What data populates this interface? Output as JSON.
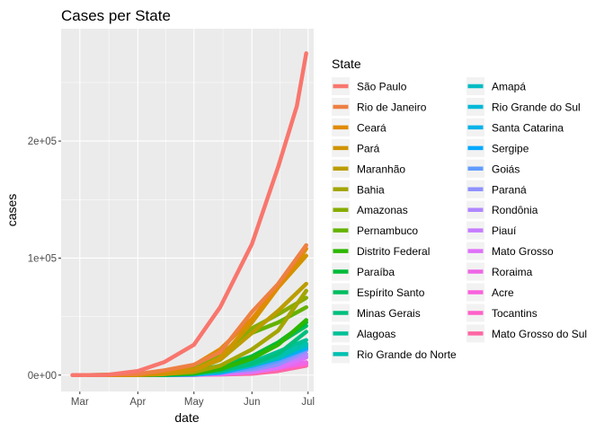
{
  "chart_data": {
    "type": "line",
    "title": "Cases per State",
    "xlabel": "date",
    "ylabel": "cases",
    "x_ticks": [
      "Mar",
      "Apr",
      "May",
      "Jun",
      "Jul"
    ],
    "x_tick_dates": [
      "2020-03-01",
      "2020-04-01",
      "2020-05-01",
      "2020-06-01",
      "2020-07-01"
    ],
    "xlim": [
      "2020-02-20",
      "2020-07-04"
    ],
    "y_ticks": [
      0,
      100000,
      200000
    ],
    "y_tick_labels": [
      "0e+00",
      "1e+05",
      "2e+05"
    ],
    "ylim": [
      -14000,
      296000
    ],
    "grid": true,
    "legend_title": "State",
    "legend_position": "right",
    "series": [
      {
        "name": "São Paulo",
        "color": "#F8766D",
        "points": [
          [
            "2020-02-26",
            1
          ],
          [
            "2020-03-15",
            150
          ],
          [
            "2020-04-01",
            3500
          ],
          [
            "2020-04-15",
            11000
          ],
          [
            "2020-05-01",
            26000
          ],
          [
            "2020-05-15",
            58000
          ],
          [
            "2020-06-01",
            112000
          ],
          [
            "2020-06-15",
            178000
          ],
          [
            "2020-06-25",
            230000
          ],
          [
            "2020-06-30",
            275000
          ]
        ]
      },
      {
        "name": "Rio de Janeiro",
        "color": "#EE8043",
        "points": [
          [
            "2020-03-05",
            1
          ],
          [
            "2020-04-01",
            1000
          ],
          [
            "2020-04-15",
            4000
          ],
          [
            "2020-05-01",
            8900
          ],
          [
            "2020-05-15",
            19500
          ],
          [
            "2020-06-01",
            54000
          ],
          [
            "2020-06-15",
            78000
          ],
          [
            "2020-06-30",
            111000
          ]
        ]
      },
      {
        "name": "Ceará",
        "color": "#E08B00",
        "points": [
          [
            "2020-03-15",
            1
          ],
          [
            "2020-04-01",
            700
          ],
          [
            "2020-04-15",
            3000
          ],
          [
            "2020-05-01",
            8500
          ],
          [
            "2020-05-15",
            22000
          ],
          [
            "2020-06-01",
            48000
          ],
          [
            "2020-06-15",
            75000
          ],
          [
            "2020-06-30",
            108000
          ]
        ]
      },
      {
        "name": "Pará",
        "color": "#CF9400",
        "points": [
          [
            "2020-03-18",
            1
          ],
          [
            "2020-04-01",
            150
          ],
          [
            "2020-04-15",
            900
          ],
          [
            "2020-05-01",
            4000
          ],
          [
            "2020-05-15",
            14500
          ],
          [
            "2020-06-01",
            45000
          ],
          [
            "2020-06-15",
            75000
          ],
          [
            "2020-06-30",
            102000
          ]
        ]
      },
      {
        "name": "Maranhão",
        "color": "#BB9D00",
        "points": [
          [
            "2020-03-20",
            1
          ],
          [
            "2020-04-01",
            150
          ],
          [
            "2020-04-15",
            800
          ],
          [
            "2020-05-01",
            4500
          ],
          [
            "2020-05-15",
            13000
          ],
          [
            "2020-06-01",
            36000
          ],
          [
            "2020-06-15",
            55000
          ],
          [
            "2020-06-30",
            78000
          ]
        ]
      },
      {
        "name": "Bahia",
        "color": "#A3A500",
        "points": [
          [
            "2020-03-06",
            1
          ],
          [
            "2020-04-01",
            300
          ],
          [
            "2020-04-15",
            1000
          ],
          [
            "2020-05-01",
            2500
          ],
          [
            "2020-05-15",
            8000
          ],
          [
            "2020-06-01",
            22000
          ],
          [
            "2020-06-15",
            38000
          ],
          [
            "2020-06-30",
            72000
          ]
        ]
      },
      {
        "name": "Amazonas",
        "color": "#87AC00",
        "points": [
          [
            "2020-03-13",
            1
          ],
          [
            "2020-04-01",
            200
          ],
          [
            "2020-04-15",
            1500
          ],
          [
            "2020-05-01",
            6000
          ],
          [
            "2020-05-15",
            17000
          ],
          [
            "2020-06-01",
            40000
          ],
          [
            "2020-06-15",
            52000
          ],
          [
            "2020-06-30",
            66000
          ]
        ]
      },
      {
        "name": "Pernambuco",
        "color": "#64B200",
        "points": [
          [
            "2020-03-12",
            1
          ],
          [
            "2020-04-01",
            100
          ],
          [
            "2020-04-15",
            1400
          ],
          [
            "2020-05-01",
            7500
          ],
          [
            "2020-05-15",
            15000
          ],
          [
            "2020-06-01",
            36000
          ],
          [
            "2020-06-15",
            45000
          ],
          [
            "2020-06-30",
            58000
          ]
        ]
      },
      {
        "name": "Distrito Federal",
        "color": "#2CB600",
        "points": [
          [
            "2020-03-07",
            1
          ],
          [
            "2020-04-01",
            400
          ],
          [
            "2020-04-15",
            900
          ],
          [
            "2020-05-01",
            2000
          ],
          [
            "2020-05-15",
            5000
          ],
          [
            "2020-06-01",
            14000
          ],
          [
            "2020-06-15",
            26000
          ],
          [
            "2020-06-30",
            47000
          ]
        ]
      },
      {
        "name": "Paraíba",
        "color": "#00BA38",
        "points": [
          [
            "2020-03-18",
            1
          ],
          [
            "2020-04-01",
            30
          ],
          [
            "2020-04-15",
            200
          ],
          [
            "2020-05-01",
            1200
          ],
          [
            "2020-05-15",
            5000
          ],
          [
            "2020-06-01",
            16000
          ],
          [
            "2020-06-15",
            28000
          ],
          [
            "2020-06-30",
            45000
          ]
        ]
      },
      {
        "name": "Espírito Santo",
        "color": "#00BD5F",
        "points": [
          [
            "2020-03-06",
            1
          ],
          [
            "2020-04-01",
            150
          ],
          [
            "2020-04-15",
            800
          ],
          [
            "2020-05-01",
            3500
          ],
          [
            "2020-05-15",
            8000
          ],
          [
            "2020-06-01",
            16000
          ],
          [
            "2020-06-15",
            27000
          ],
          [
            "2020-06-30",
            42000
          ]
        ]
      },
      {
        "name": "Minas Gerais",
        "color": "#00BF7D",
        "points": [
          [
            "2020-03-08",
            1
          ],
          [
            "2020-04-01",
            300
          ],
          [
            "2020-04-15",
            900
          ],
          [
            "2020-05-01",
            1800
          ],
          [
            "2020-05-15",
            4000
          ],
          [
            "2020-06-01",
            9500
          ],
          [
            "2020-06-15",
            18000
          ],
          [
            "2020-06-30",
            37000
          ]
        ]
      },
      {
        "name": "Alagoas",
        "color": "#00C097",
        "points": [
          [
            "2020-03-08",
            1
          ],
          [
            "2020-04-01",
            20
          ],
          [
            "2020-04-15",
            120
          ],
          [
            "2020-05-01",
            1000
          ],
          [
            "2020-05-15",
            3500
          ],
          [
            "2020-06-01",
            11000
          ],
          [
            "2020-06-15",
            20000
          ],
          [
            "2020-06-30",
            30000
          ]
        ]
      },
      {
        "name": "Rio Grande do Norte",
        "color": "#00C0AF",
        "points": [
          [
            "2020-03-12",
            1
          ],
          [
            "2020-04-01",
            130
          ],
          [
            "2020-04-15",
            350
          ],
          [
            "2020-05-01",
            1200
          ],
          [
            "2020-05-15",
            3000
          ],
          [
            "2020-06-01",
            8500
          ],
          [
            "2020-06-15",
            15000
          ],
          [
            "2020-06-30",
            27000
          ]
        ]
      },
      {
        "name": "Amapá",
        "color": "#00BCC4",
        "points": [
          [
            "2020-03-20",
            1
          ],
          [
            "2020-04-01",
            50
          ],
          [
            "2020-04-15",
            500
          ],
          [
            "2020-05-01",
            2200
          ],
          [
            "2020-05-15",
            4000
          ],
          [
            "2020-06-01",
            11000
          ],
          [
            "2020-06-15",
            18000
          ],
          [
            "2020-06-30",
            25000
          ]
        ]
      },
      {
        "name": "Rio Grande do Sul",
        "color": "#00B8D7",
        "points": [
          [
            "2020-03-10",
            1
          ],
          [
            "2020-04-01",
            400
          ],
          [
            "2020-04-15",
            700
          ],
          [
            "2020-05-01",
            1300
          ],
          [
            "2020-05-15",
            3000
          ],
          [
            "2020-06-01",
            9000
          ],
          [
            "2020-06-15",
            15000
          ],
          [
            "2020-06-30",
            26000
          ]
        ]
      },
      {
        "name": "Santa Catarina",
        "color": "#00B2E9",
        "points": [
          [
            "2020-03-12",
            1
          ],
          [
            "2020-04-01",
            300
          ],
          [
            "2020-04-15",
            700
          ],
          [
            "2020-05-01",
            1700
          ],
          [
            "2020-05-15",
            4500
          ],
          [
            "2020-06-01",
            9500
          ],
          [
            "2020-06-15",
            14000
          ],
          [
            "2020-06-30",
            24000
          ]
        ]
      },
      {
        "name": "Sergipe",
        "color": "#00A9FF",
        "points": [
          [
            "2020-03-14",
            1
          ],
          [
            "2020-04-01",
            20
          ],
          [
            "2020-04-15",
            50
          ],
          [
            "2020-05-01",
            400
          ],
          [
            "2020-05-15",
            2000
          ],
          [
            "2020-06-01",
            8000
          ],
          [
            "2020-06-15",
            14000
          ],
          [
            "2020-06-30",
            23000
          ]
        ]
      },
      {
        "name": "Goiás",
        "color": "#619CFF",
        "points": [
          [
            "2020-03-12",
            1
          ],
          [
            "2020-04-01",
            150
          ],
          [
            "2020-04-15",
            300
          ],
          [
            "2020-05-01",
            700
          ],
          [
            "2020-05-15",
            1800
          ],
          [
            "2020-06-01",
            6000
          ],
          [
            "2020-06-15",
            12000
          ],
          [
            "2020-06-30",
            22000
          ]
        ]
      },
      {
        "name": "Paraná",
        "color": "#8F91FF",
        "points": [
          [
            "2020-03-12",
            1
          ],
          [
            "2020-04-01",
            200
          ],
          [
            "2020-04-15",
            700
          ],
          [
            "2020-05-01",
            1200
          ],
          [
            "2020-05-15",
            2400
          ],
          [
            "2020-06-01",
            4500
          ],
          [
            "2020-06-15",
            9000
          ],
          [
            "2020-06-30",
            21000
          ]
        ]
      },
      {
        "name": "Rondônia",
        "color": "#B086FF",
        "points": [
          [
            "2020-03-20",
            1
          ],
          [
            "2020-04-01",
            30
          ],
          [
            "2020-04-15",
            120
          ],
          [
            "2020-05-01",
            700
          ],
          [
            "2020-05-15",
            2400
          ],
          [
            "2020-06-01",
            6500
          ],
          [
            "2020-06-15",
            11000
          ],
          [
            "2020-06-30",
            18000
          ]
        ]
      },
      {
        "name": "Piauí",
        "color": "#C77CFF",
        "points": [
          [
            "2020-03-19",
            1
          ],
          [
            "2020-04-01",
            20
          ],
          [
            "2020-04-15",
            80
          ],
          [
            "2020-05-01",
            600
          ],
          [
            "2020-05-15",
            2000
          ],
          [
            "2020-06-01",
            6000
          ],
          [
            "2020-06-15",
            10000
          ],
          [
            "2020-06-30",
            16000
          ]
        ]
      },
      {
        "name": "Mato Grosso",
        "color": "#DE71F9",
        "points": [
          [
            "2020-03-20",
            1
          ],
          [
            "2020-04-01",
            40
          ],
          [
            "2020-04-15",
            150
          ],
          [
            "2020-05-01",
            300
          ],
          [
            "2020-05-15",
            800
          ],
          [
            "2020-06-01",
            2500
          ],
          [
            "2020-06-15",
            6000
          ],
          [
            "2020-06-30",
            15000
          ]
        ]
      },
      {
        "name": "Roraima",
        "color": "#EE67E6",
        "points": [
          [
            "2020-03-21",
            1
          ],
          [
            "2020-04-01",
            30
          ],
          [
            "2020-04-15",
            200
          ],
          [
            "2020-05-01",
            600
          ],
          [
            "2020-05-15",
            1700
          ],
          [
            "2020-06-01",
            3500
          ],
          [
            "2020-06-15",
            6500
          ],
          [
            "2020-06-30",
            11000
          ]
        ]
      },
      {
        "name": "Acre",
        "color": "#F962DD",
        "points": [
          [
            "2020-03-17",
            1
          ],
          [
            "2020-04-01",
            40
          ],
          [
            "2020-04-15",
            100
          ],
          [
            "2020-05-01",
            500
          ],
          [
            "2020-05-15",
            1500
          ],
          [
            "2020-06-01",
            4000
          ],
          [
            "2020-06-15",
            6500
          ],
          [
            "2020-06-30",
            10000
          ]
        ]
      },
      {
        "name": "Tocantins",
        "color": "#FF61C9",
        "points": [
          [
            "2020-03-18",
            1
          ],
          [
            "2020-04-01",
            10
          ],
          [
            "2020-04-15",
            30
          ],
          [
            "2020-05-01",
            200
          ],
          [
            "2020-05-15",
            800
          ],
          [
            "2020-06-01",
            3000
          ],
          [
            "2020-06-15",
            5500
          ],
          [
            "2020-06-30",
            9500
          ]
        ]
      },
      {
        "name": "Mato Grosso do Sul",
        "color": "#FF67A4",
        "points": [
          [
            "2020-03-14",
            1
          ],
          [
            "2020-04-01",
            60
          ],
          [
            "2020-04-15",
            120
          ],
          [
            "2020-05-01",
            250
          ],
          [
            "2020-05-15",
            500
          ],
          [
            "2020-06-01",
            1200
          ],
          [
            "2020-06-15",
            3500
          ],
          [
            "2020-06-30",
            8000
          ]
        ]
      }
    ]
  }
}
